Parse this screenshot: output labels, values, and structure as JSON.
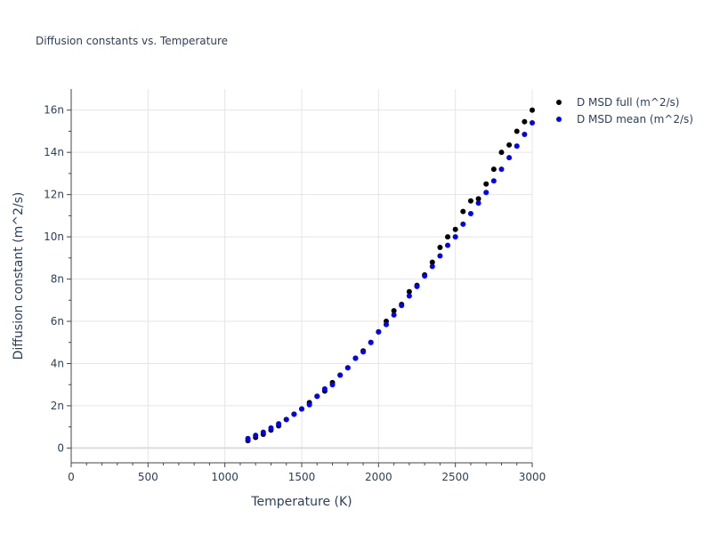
{
  "chart_data": {
    "type": "scatter",
    "title": "Diffusion constants vs. Temperature",
    "xlabel": "Temperature (K)",
    "ylabel": "Diffusion constant (m^2/s)",
    "xlim": [
      0,
      3000
    ],
    "ylim": [
      -0.7,
      17
    ],
    "grid": true,
    "legend_position": "top-right-outside",
    "x_ticks": [
      {
        "value": 0,
        "label": "0"
      },
      {
        "value": 500,
        "label": "500"
      },
      {
        "value": 1000,
        "label": "1000"
      },
      {
        "value": 1500,
        "label": "1500"
      },
      {
        "value": 2000,
        "label": "2000"
      },
      {
        "value": 2500,
        "label": "2500"
      },
      {
        "value": 3000,
        "label": "3000"
      }
    ],
    "y_ticks": [
      {
        "value": 0,
        "label": "0"
      },
      {
        "value": 2,
        "label": "2n"
      },
      {
        "value": 4,
        "label": "4n"
      },
      {
        "value": 6,
        "label": "6n"
      },
      {
        "value": 8,
        "label": "8n"
      },
      {
        "value": 10,
        "label": "10n"
      },
      {
        "value": 12,
        "label": "12n"
      },
      {
        "value": 14,
        "label": "14n"
      },
      {
        "value": 16,
        "label": "16n"
      }
    ],
    "x": [
      1150,
      1200,
      1250,
      1300,
      1350,
      1400,
      1450,
      1500,
      1550,
      1600,
      1650,
      1700,
      1750,
      1800,
      1850,
      1900,
      1950,
      2000,
      2050,
      2100,
      2150,
      2200,
      2250,
      2300,
      2350,
      2400,
      2450,
      2500,
      2550,
      2600,
      2650,
      2700,
      2750,
      2800,
      2850,
      2900,
      2950,
      3000
    ],
    "series": [
      {
        "name": "D MSD full (m^2/s)",
        "color": "#000000",
        "values": [
          0.35,
          0.5,
          0.65,
          0.85,
          1.05,
          1.35,
          1.6,
          1.85,
          2.15,
          2.45,
          2.7,
          3.1,
          3.45,
          3.8,
          4.25,
          4.6,
          5.0,
          5.5,
          6.0,
          6.5,
          6.8,
          7.4,
          7.7,
          8.2,
          8.8,
          9.5,
          10.0,
          10.35,
          11.2,
          11.7,
          11.8,
          12.5,
          13.2,
          14.0,
          14.35,
          15.0,
          15.45,
          16.0
        ]
      },
      {
        "name": "D MSD mean (m^2/s)",
        "color": "#0000ff",
        "values": [
          0.45,
          0.6,
          0.75,
          0.95,
          1.15,
          1.35,
          1.6,
          1.85,
          2.05,
          2.45,
          2.8,
          3.0,
          3.45,
          3.8,
          4.25,
          4.55,
          5.0,
          5.5,
          5.85,
          6.3,
          6.75,
          7.2,
          7.65,
          8.15,
          8.6,
          9.1,
          9.6,
          10.0,
          10.6,
          11.1,
          11.6,
          12.1,
          12.65,
          13.2,
          13.75,
          14.3,
          14.85,
          15.4
        ]
      }
    ]
  }
}
